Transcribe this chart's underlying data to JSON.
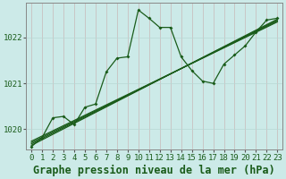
{
  "title": "Graphe pression niveau de la mer (hPa)",
  "background_color": "#cceae8",
  "grid_color_h": "#b8d8d4",
  "grid_color_v": "#c8b8b8",
  "line_color": "#1a5c1a",
  "xlim": [
    -0.5,
    23.5
  ],
  "ylim": [
    1019.55,
    1022.75
  ],
  "yticks": [
    1020,
    1021,
    1022
  ],
  "xticks": [
    0,
    1,
    2,
    3,
    4,
    5,
    6,
    7,
    8,
    9,
    10,
    11,
    12,
    13,
    14,
    15,
    16,
    17,
    18,
    19,
    20,
    21,
    22,
    23
  ],
  "tick_fontsize": 6.5,
  "title_fontsize": 8.5,
  "trend_lines": [
    [
      [
        0,
        23
      ],
      [
        1019.65,
        1022.4
      ]
    ],
    [
      [
        0,
        23
      ],
      [
        1019.68,
        1022.38
      ]
    ],
    [
      [
        0,
        23
      ],
      [
        1019.71,
        1022.36
      ]
    ],
    [
      [
        0,
        23
      ],
      [
        1019.74,
        1022.34
      ]
    ]
  ],
  "zigzag_series_x": [
    0,
    1,
    2,
    3,
    4,
    5,
    6,
    7,
    8,
    9,
    10,
    11,
    12,
    13,
    14,
    15,
    16,
    17,
    18,
    19,
    20,
    21,
    22,
    23
  ],
  "zigzag_series_y": [
    1019.62,
    1019.82,
    1020.25,
    1020.28,
    1020.1,
    1020.48,
    1020.55,
    1021.25,
    1021.55,
    1021.58,
    1022.6,
    1022.42,
    1022.22,
    1022.22,
    1021.58,
    1021.28,
    1021.05,
    1021.0,
    1021.42,
    1021.62,
    1021.82,
    1022.12,
    1022.38,
    1022.42
  ]
}
